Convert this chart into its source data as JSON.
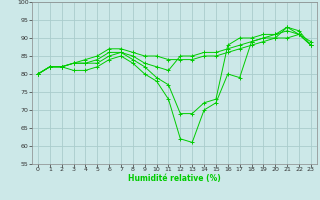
{
  "title": "",
  "xlabel": "Humidité relative (%)",
  "ylabel": "",
  "background_color": "#cce8e8",
  "grid_color": "#aacccc",
  "line_color": "#00cc00",
  "marker": "+",
  "ylim": [
    55,
    100
  ],
  "yticks": [
    55,
    60,
    65,
    70,
    75,
    80,
    85,
    90,
    95,
    100
  ],
  "xlim": [
    -0.5,
    23.5
  ],
  "xticks": [
    0,
    1,
    2,
    3,
    4,
    5,
    6,
    7,
    8,
    9,
    10,
    11,
    12,
    13,
    14,
    15,
    16,
    17,
    18,
    19,
    20,
    21,
    22,
    23
  ],
  "series": [
    [
      80,
      82,
      82,
      83,
      84,
      85,
      87,
      87,
      86,
      85,
      85,
      84,
      84,
      84,
      85,
      85,
      86,
      87,
      88,
      89,
      90,
      90,
      91,
      89
    ],
    [
      80,
      82,
      82,
      81,
      81,
      82,
      84,
      85,
      83,
      80,
      78,
      73,
      62,
      61,
      70,
      72,
      80,
      79,
      89,
      90,
      90,
      93,
      91,
      88
    ],
    [
      80,
      82,
      82,
      83,
      83,
      84,
      86,
      86,
      84,
      82,
      79,
      77,
      69,
      69,
      72,
      73,
      88,
      90,
      90,
      91,
      91,
      92,
      91,
      88
    ],
    [
      80,
      82,
      82,
      83,
      83,
      83,
      85,
      86,
      85,
      83,
      82,
      81,
      85,
      85,
      86,
      86,
      87,
      88,
      89,
      90,
      91,
      93,
      92,
      88
    ]
  ]
}
